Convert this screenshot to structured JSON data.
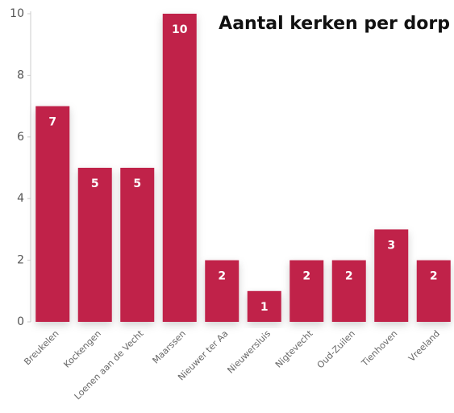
{
  "chart_data": {
    "type": "bar",
    "title": "Aantal kerken per dorp",
    "categories": [
      "Breukelen",
      "Kockengen",
      "Loenen aan de Vecht",
      "Maarssen",
      "Nieuwer ter Aa",
      "Nieuwersluis",
      "Nigtevecht",
      "Oud-Zuilen",
      "Tienhoven",
      "Vreeland"
    ],
    "values": [
      7,
      5,
      5,
      10,
      2,
      1,
      2,
      2,
      3,
      2
    ],
    "color": "#c0204a",
    "ylim": [
      0,
      10
    ],
    "yticks": [
      0,
      2,
      4,
      6,
      8,
      10
    ],
    "grid": false
  }
}
